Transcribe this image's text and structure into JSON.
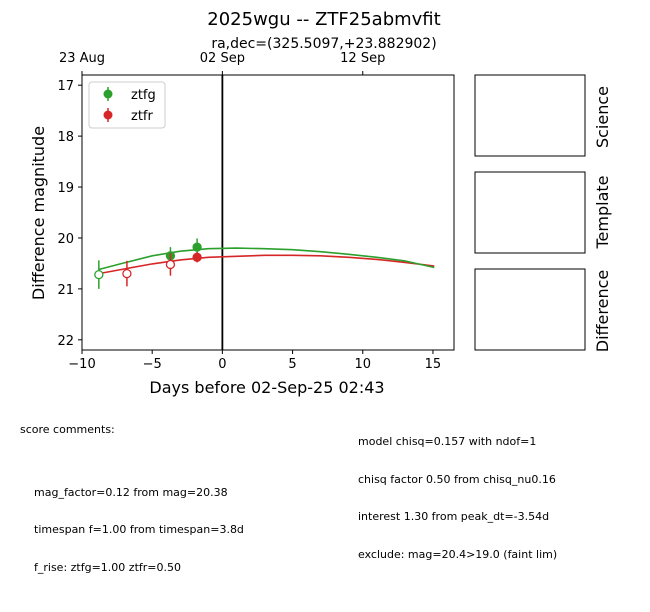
{
  "figure": {
    "title": "2025wgu -- ZTF25abmvfit",
    "subtitle": "ra,dec=(325.5097,+23.882902)"
  },
  "chart_data": {
    "type": "scatter",
    "xlabel": "Days before 02-Sep-25 02:43",
    "ylabel": "Difference magnitude",
    "xlim": [
      -10,
      16.5
    ],
    "ylim": [
      22.2,
      16.8
    ],
    "y_inverted": true,
    "xticks": [
      -10,
      -5,
      0,
      5,
      10,
      15
    ],
    "yticks": [
      17,
      18,
      19,
      20,
      21,
      22
    ],
    "top_axis_ticks": [
      {
        "label": "23 Aug",
        "x": -10
      },
      {
        "label": "02 Sep",
        "x": 0
      },
      {
        "label": "12 Sep",
        "x": 10
      }
    ],
    "vertical_line_x": 0,
    "legend": {
      "placement": "upper-left",
      "entries": [
        "ztfg",
        "ztfr"
      ]
    },
    "series": [
      {
        "name": "ztfg",
        "color": "#2ca02c",
        "points": [
          {
            "x": -8.8,
            "y": 20.72,
            "err": 0.28,
            "filled": false
          },
          {
            "x": -3.7,
            "y": 20.35,
            "err": 0.17,
            "filled": true
          },
          {
            "x": -1.8,
            "y": 20.18,
            "err": 0.17,
            "filled": true
          }
        ],
        "fit": [
          [
            -8.8,
            20.62
          ],
          [
            -7,
            20.49
          ],
          [
            -5,
            20.35
          ],
          [
            -3,
            20.26
          ],
          [
            -1,
            20.21
          ],
          [
            1,
            20.2
          ],
          [
            3,
            20.21
          ],
          [
            5,
            20.23
          ],
          [
            7,
            20.27
          ],
          [
            9,
            20.32
          ],
          [
            11,
            20.38
          ],
          [
            13,
            20.45
          ],
          [
            15.1,
            20.58
          ]
        ]
      },
      {
        "name": "ztfr",
        "color": "#d62728",
        "points": [
          {
            "x": -6.8,
            "y": 20.7,
            "err": 0.25,
            "filled": false
          },
          {
            "x": -3.7,
            "y": 20.52,
            "err": 0.22,
            "filled": false
          },
          {
            "x": -1.8,
            "y": 20.38,
            "err": 0.1,
            "filled": true
          }
        ],
        "fit": [
          [
            -8.8,
            20.7
          ],
          [
            -7,
            20.61
          ],
          [
            -5,
            20.51
          ],
          [
            -3,
            20.43
          ],
          [
            -1,
            20.38
          ],
          [
            1,
            20.36
          ],
          [
            3,
            20.34
          ],
          [
            5,
            20.34
          ],
          [
            7,
            20.35
          ],
          [
            9,
            20.38
          ],
          [
            11,
            20.42
          ],
          [
            13,
            20.48
          ],
          [
            15.1,
            20.55
          ]
        ]
      }
    ]
  },
  "side_panels": [
    "Science",
    "Template",
    "Difference"
  ],
  "score_comments": {
    "header": "score comments:",
    "left_lines": [
      "mag_factor=0.12 from mag=20.38",
      "timespan f=1.00 from timespan=3.8d",
      "f_rise: ztfg=1.00 ztfr=0.50"
    ],
    "right_lines": [
      "model chisq=0.157 with ndof=1",
      "chisq factor 0.50 from chisq_nu0.16",
      "interest 1.30 from peak_dt=-3.54d",
      "exclude: mag=20.4>19.0 (faint lim)"
    ]
  }
}
